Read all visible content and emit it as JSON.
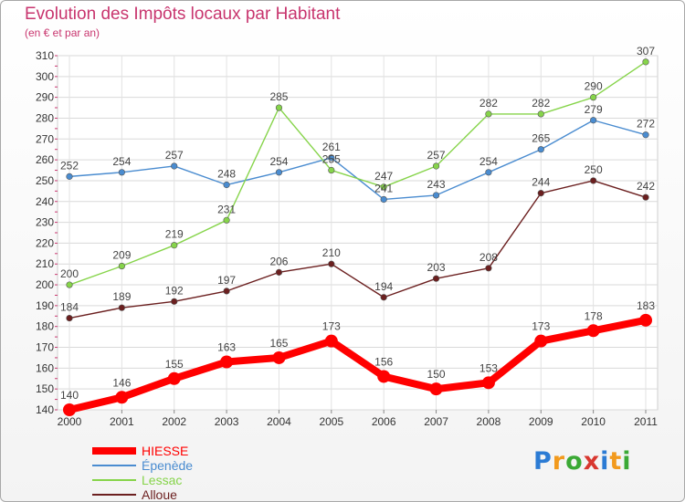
{
  "title": "Evolution des Impôts locaux par Habitant",
  "subtitle": "(en € et par an)",
  "logo": {
    "text": "Proxiti",
    "letter_colors": [
      "#2b7bd4",
      "#f29a1d",
      "#3ba935",
      "#d8372f",
      "#2b7bd4",
      "#f29a1d",
      "#3ba935"
    ]
  },
  "chart_data": {
    "type": "line",
    "x": [
      "2000",
      "2001",
      "2002",
      "2003",
      "2004",
      "2005",
      "2006",
      "2007",
      "2008",
      "2009",
      "2010",
      "2011"
    ],
    "ylim": [
      140,
      310
    ],
    "yticks": [
      140,
      150,
      160,
      170,
      180,
      190,
      200,
      210,
      220,
      230,
      240,
      250,
      260,
      270,
      280,
      290,
      300,
      310
    ],
    "grid": true,
    "legend_position": "bottom-left",
    "series": [
      {
        "name": "HIESSE",
        "color": "#ff0000",
        "values": [
          140,
          146,
          155,
          163,
          165,
          173,
          156,
          150,
          153,
          173,
          178,
          183
        ]
      },
      {
        "name": "Épenède",
        "color": "#4a8cd0",
        "values": [
          252,
          254,
          257,
          248,
          254,
          261,
          241,
          243,
          254,
          265,
          279,
          272
        ]
      },
      {
        "name": "Lessac",
        "color": "#86d44a",
        "values": [
          200,
          209,
          219,
          231,
          285,
          255,
          247,
          257,
          282,
          282,
          290,
          307
        ]
      },
      {
        "name": "Alloue",
        "color": "#6b1f1f",
        "values": [
          184,
          189,
          192,
          197,
          206,
          210,
          194,
          203,
          208,
          244,
          250,
          242
        ]
      }
    ]
  }
}
